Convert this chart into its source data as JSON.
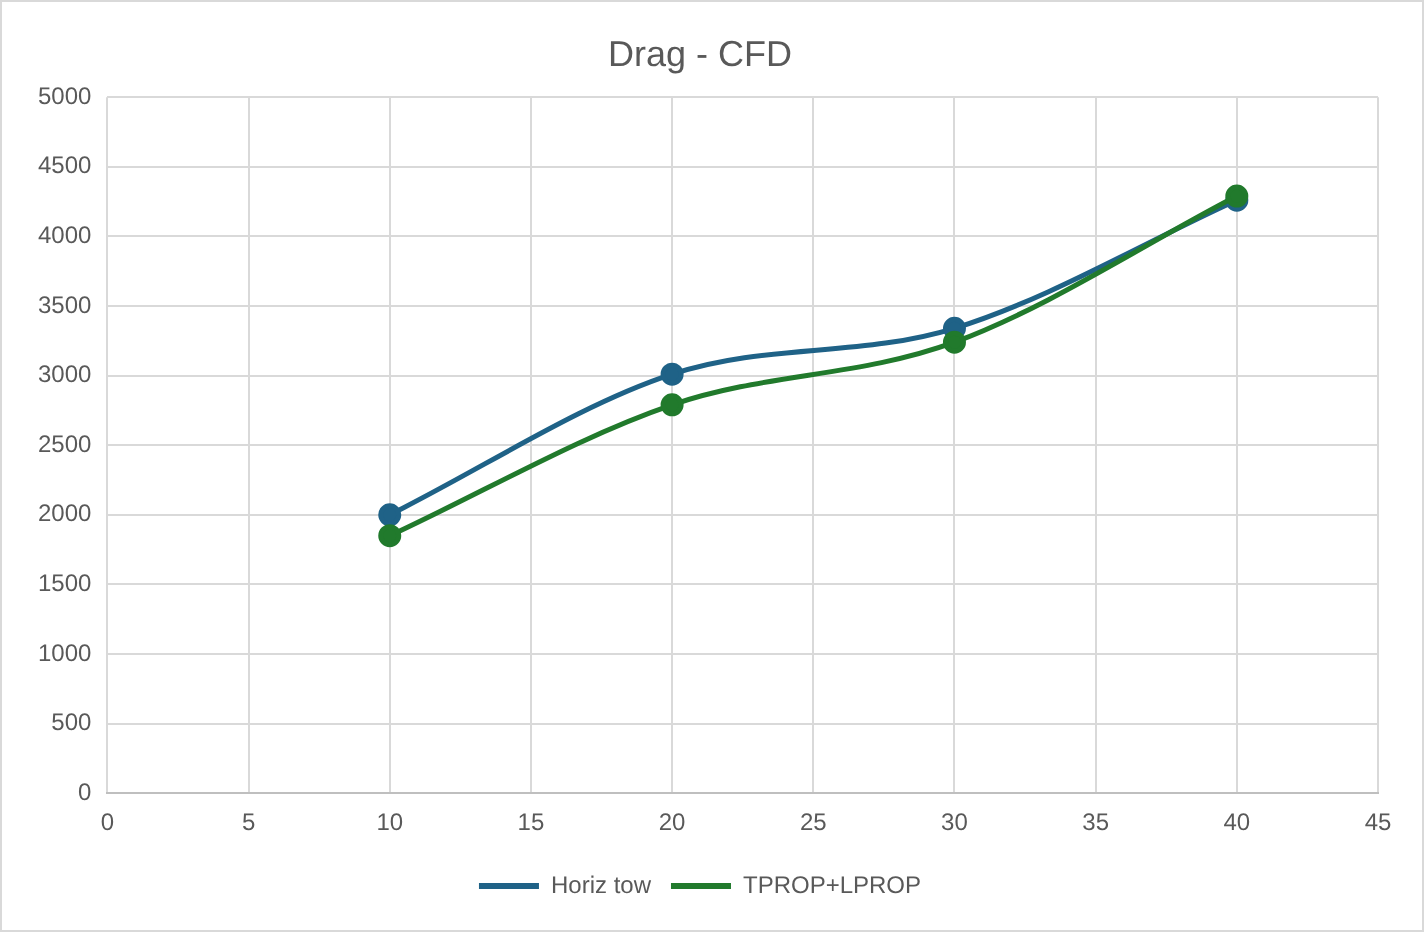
{
  "chart_data": {
    "type": "line",
    "title": "Drag - CFD",
    "x": [
      10,
      20,
      30,
      40
    ],
    "series": [
      {
        "name": "Horiz tow",
        "color": "#1f6287",
        "values": [
          2000,
          3010,
          3340,
          4260
        ]
      },
      {
        "name": "TPROP+LPROP",
        "color": "#217a2c",
        "values": [
          1850,
          2790,
          3240,
          4290
        ]
      }
    ],
    "xlim": [
      0,
      45
    ],
    "xticks": [
      0,
      5,
      10,
      15,
      20,
      25,
      30,
      35,
      40,
      45
    ],
    "ylim": [
      0,
      5000
    ],
    "yticks": [
      0,
      500,
      1000,
      1500,
      2000,
      2500,
      3000,
      3500,
      4000,
      4500,
      5000
    ],
    "grid": true,
    "legend": "bottom",
    "marker": "circle",
    "line_style": "solid"
  }
}
